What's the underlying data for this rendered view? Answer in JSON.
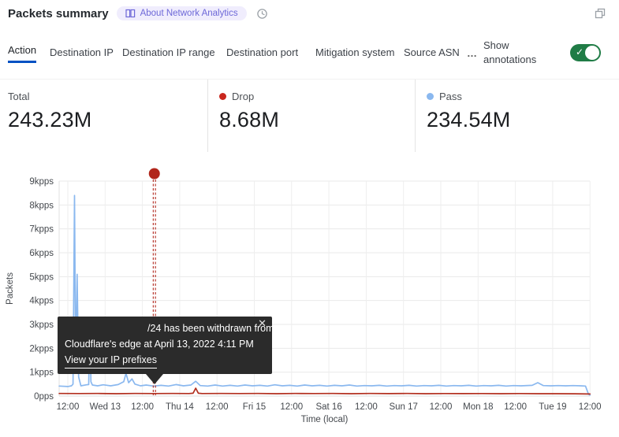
{
  "header": {
    "title": "Packets summary",
    "badge_label": "About Network Analytics",
    "icons": {
      "badge": "book-icon",
      "time": "clock-icon",
      "window": "overlapping-squares-icon"
    }
  },
  "tabs": {
    "items": [
      {
        "label": "Action",
        "active": true
      },
      {
        "label": "Destination IP",
        "active": false
      },
      {
        "label": "Destination IP range",
        "active": false
      },
      {
        "label": "Destination port",
        "active": false
      },
      {
        "label": "Mitigation system",
        "active": false
      },
      {
        "label": "Source ASN",
        "active": false
      }
    ],
    "more_label": "…",
    "annotations_label": "Show annotations",
    "toggle_on": true,
    "toggle_check": "✓",
    "active_underline_color": "#0051c3",
    "toggle_color": "#207c46"
  },
  "stats": [
    {
      "label": "Total",
      "value": "243.23M",
      "dot_color": ""
    },
    {
      "label": "Drop",
      "value": "8.68M",
      "dot_color": "#c9261e"
    },
    {
      "label": "Pass",
      "value": "234.54M",
      "dot_color": "#8ab8ef"
    }
  ],
  "tooltip": {
    "line1": "/24 has been withdrawn from",
    "line2": "Cloudflare's edge at April 13, 2022 4:11 PM",
    "link": "View your IP prefixes",
    "close": "✕"
  },
  "chart_data": {
    "type": "line",
    "title": "Packets summary",
    "xlabel": "Time (local)",
    "ylabel": "Packets",
    "ylim": [
      0,
      9000
    ],
    "grid": true,
    "y_ticks": [
      "0pps",
      "1kpps",
      "2kpps",
      "3kpps",
      "4kpps",
      "5kpps",
      "6kpps",
      "7kpps",
      "8kpps",
      "9kpps"
    ],
    "x_ticks": [
      "12:00",
      "Wed 13",
      "12:00",
      "Thu 14",
      "12:00",
      "Fri 15",
      "12:00",
      "Sat 16",
      "12:00",
      "Sun 17",
      "12:00",
      "Mon 18",
      "12:00",
      "Tue 19",
      "12:00"
    ],
    "series": [
      {
        "name": "Pass",
        "color": "#8ab8ef",
        "points": [
          [
            -0.23,
            420
          ],
          [
            0.0,
            400
          ],
          [
            0.1,
            430
          ],
          [
            0.14,
            500
          ],
          [
            0.18,
            8400
          ],
          [
            0.21,
            1200
          ],
          [
            0.25,
            5100
          ],
          [
            0.29,
            800
          ],
          [
            0.35,
            430
          ],
          [
            0.5,
            470
          ],
          [
            0.56,
            480
          ],
          [
            0.59,
            3300
          ],
          [
            0.62,
            600
          ],
          [
            0.66,
            460
          ],
          [
            0.8,
            430
          ],
          [
            0.95,
            470
          ],
          [
            1.15,
            430
          ],
          [
            1.35,
            480
          ],
          [
            1.5,
            600
          ],
          [
            1.56,
            950
          ],
          [
            1.63,
            560
          ],
          [
            1.72,
            720
          ],
          [
            1.8,
            500
          ],
          [
            1.95,
            430
          ],
          [
            2.1,
            460
          ],
          [
            2.3,
            420
          ],
          [
            2.5,
            450
          ],
          [
            2.7,
            420
          ],
          [
            2.9,
            480
          ],
          [
            3.1,
            430
          ],
          [
            3.3,
            460
          ],
          [
            3.43,
            620
          ],
          [
            3.55,
            440
          ],
          [
            3.75,
            420
          ],
          [
            3.95,
            460
          ],
          [
            4.15,
            420
          ],
          [
            4.35,
            450
          ],
          [
            4.55,
            420
          ],
          [
            4.75,
            460
          ],
          [
            4.95,
            430
          ],
          [
            5.15,
            450
          ],
          [
            5.35,
            420
          ],
          [
            5.55,
            470
          ],
          [
            5.75,
            430
          ],
          [
            5.95,
            450
          ],
          [
            6.15,
            420
          ],
          [
            6.35,
            460
          ],
          [
            6.55,
            430
          ],
          [
            6.75,
            450
          ],
          [
            6.95,
            420
          ],
          [
            7.15,
            450
          ],
          [
            7.35,
            430
          ],
          [
            7.55,
            460
          ],
          [
            7.75,
            420
          ],
          [
            7.95,
            440
          ],
          [
            8.15,
            430
          ],
          [
            8.35,
            450
          ],
          [
            8.55,
            420
          ],
          [
            8.75,
            440
          ],
          [
            8.95,
            430
          ],
          [
            9.15,
            450
          ],
          [
            9.35,
            420
          ],
          [
            9.55,
            440
          ],
          [
            9.75,
            430
          ],
          [
            9.95,
            450
          ],
          [
            10.15,
            420
          ],
          [
            10.35,
            440
          ],
          [
            10.55,
            430
          ],
          [
            10.75,
            450
          ],
          [
            10.95,
            420
          ],
          [
            11.15,
            440
          ],
          [
            11.35,
            430
          ],
          [
            11.55,
            450
          ],
          [
            11.75,
            420
          ],
          [
            11.95,
            440
          ],
          [
            12.15,
            430
          ],
          [
            12.45,
            450
          ],
          [
            12.6,
            560
          ],
          [
            12.75,
            440
          ],
          [
            12.95,
            430
          ],
          [
            13.15,
            440
          ],
          [
            13.35,
            430
          ],
          [
            13.55,
            440
          ],
          [
            13.75,
            430
          ],
          [
            13.88,
            420
          ],
          [
            13.96,
            80
          ],
          [
            14.0,
            40
          ]
        ]
      },
      {
        "name": "Drop",
        "color": "#b22f1f",
        "points": [
          [
            -0.23,
            110
          ],
          [
            0.3,
            105
          ],
          [
            0.8,
            110
          ],
          [
            1.3,
            100
          ],
          [
            1.8,
            110
          ],
          [
            2.3,
            105
          ],
          [
            2.8,
            110
          ],
          [
            3.25,
            105
          ],
          [
            3.36,
            120
          ],
          [
            3.43,
            330
          ],
          [
            3.5,
            120
          ],
          [
            3.6,
            105
          ],
          [
            4.1,
            110
          ],
          [
            4.6,
            105
          ],
          [
            5.1,
            110
          ],
          [
            5.6,
            100
          ],
          [
            6.1,
            110
          ],
          [
            6.6,
            105
          ],
          [
            7.1,
            110
          ],
          [
            7.6,
            100
          ],
          [
            8.1,
            108
          ],
          [
            8.6,
            102
          ],
          [
            9.1,
            108
          ],
          [
            9.6,
            100
          ],
          [
            10.1,
            106
          ],
          [
            10.6,
            102
          ],
          [
            11.1,
            106
          ],
          [
            11.6,
            100
          ],
          [
            12.1,
            104
          ],
          [
            12.6,
            100
          ],
          [
            13.1,
            100
          ],
          [
            13.6,
            95
          ],
          [
            14.0,
            85
          ]
        ]
      }
    ],
    "annotation": {
      "x": 2.32,
      "color": "#b1261b",
      "label": "/24 has been withdrawn from Cloudflare's edge at April 13, 2022 4:11 PM"
    },
    "legend_position": "none"
  }
}
